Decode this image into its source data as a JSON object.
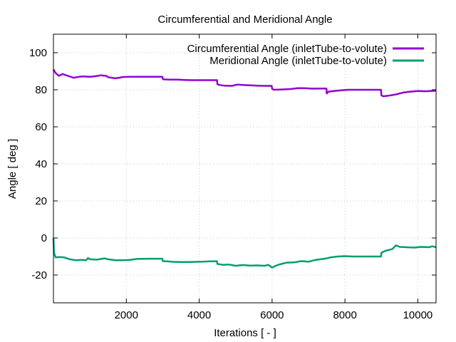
{
  "chart_data": {
    "type": "line",
    "title": "Circumferential and Meridional Angle",
    "xlabel": "Iterations [ - ]",
    "ylabel": "Angle [ deg ]",
    "xlim": [
      0,
      10500
    ],
    "ylim": [
      -35,
      110
    ],
    "xticks": [
      2000,
      4000,
      6000,
      8000,
      10000
    ],
    "yticks": [
      -20,
      0,
      20,
      40,
      60,
      80,
      100
    ],
    "grid": true,
    "legend_position": "top-right",
    "series": [
      {
        "name": "Circumferential Angle (inletTube-to-volute)",
        "color": "#9400d3",
        "x": [
          0,
          60,
          150,
          250,
          400,
          550,
          700,
          800,
          1000,
          1150,
          1300,
          1450,
          1500,
          1700,
          1800,
          1900,
          2100,
          2300,
          2500,
          2700,
          2900,
          2990,
          3000,
          3020,
          3200,
          3400,
          3600,
          3800,
          4000,
          4200,
          4400,
          4490,
          4500,
          4550,
          4700,
          4900,
          5050,
          5200,
          5400,
          5600,
          5800,
          5990,
          6000,
          6050,
          6300,
          6500,
          6700,
          6900,
          7100,
          7300,
          7490,
          7500,
          7550,
          7700,
          7900,
          8100,
          8300,
          8600,
          8990,
          9000,
          9050,
          9200,
          9400,
          9600,
          9800,
          10000,
          10200,
          10400,
          10500
        ],
        "y": [
          91,
          89,
          87.5,
          88.5,
          87.5,
          86.5,
          87,
          87.2,
          87,
          87.3,
          87.8,
          87.5,
          86.8,
          86.2,
          86.5,
          86.9,
          87,
          87,
          87,
          87,
          87,
          87,
          86,
          85.6,
          85.5,
          85.5,
          85.3,
          85.2,
          85.2,
          85.2,
          85.2,
          85.2,
          83,
          82.6,
          82.2,
          82.1,
          82.8,
          82.6,
          82.4,
          82.2,
          82.1,
          82.1,
          80.5,
          80,
          80.2,
          80.4,
          80.9,
          80.9,
          80.6,
          80.7,
          80.7,
          78,
          79,
          79.3,
          79.7,
          80,
          80,
          80,
          80,
          77,
          76.5,
          76.8,
          77.5,
          78.5,
          79,
          79.3,
          79.2,
          79.4,
          79.5
        ]
      },
      {
        "name": "Meridional Angle (inletTube-to-volute)",
        "color": "#009e73",
        "x": [
          0,
          15,
          60,
          150,
          300,
          450,
          600,
          800,
          900,
          950,
          1000,
          1200,
          1400,
          1500,
          1700,
          1900,
          2100,
          2300,
          2600,
          2800,
          2990,
          3000,
          3100,
          3300,
          3500,
          3700,
          3900,
          4100,
          4300,
          4490,
          4500,
          4650,
          4800,
          5000,
          5200,
          5400,
          5600,
          5800,
          5900,
          6000,
          6100,
          6200,
          6400,
          6600,
          6800,
          7000,
          7200,
          7400,
          7500,
          7600,
          7800,
          8000,
          8200,
          8400,
          8600,
          8800,
          8990,
          9000,
          9100,
          9300,
          9400,
          9500,
          9700,
          9900,
          10100,
          10300,
          10400,
          10500
        ],
        "y": [
          0,
          -8,
          -10.5,
          -10.3,
          -10.5,
          -11.5,
          -12,
          -11.8,
          -12,
          -10.8,
          -11.5,
          -11.7,
          -11,
          -11.5,
          -12,
          -12,
          -11.8,
          -11.3,
          -11.2,
          -11.2,
          -11.2,
          -12.5,
          -12.6,
          -12.9,
          -13,
          -13,
          -12.9,
          -12.8,
          -12.6,
          -12.6,
          -14,
          -14.5,
          -14.3,
          -15,
          -14.6,
          -14.9,
          -14.8,
          -15,
          -14.5,
          -16,
          -15,
          -14.3,
          -13.3,
          -13.2,
          -12.5,
          -12.8,
          -11.8,
          -11.3,
          -11,
          -10.5,
          -10,
          -9.8,
          -10,
          -10,
          -10,
          -10,
          -10,
          -8,
          -7,
          -6,
          -4,
          -4.8,
          -5,
          -5.2,
          -4.8,
          -5,
          -4.5,
          -5
        ]
      }
    ]
  }
}
